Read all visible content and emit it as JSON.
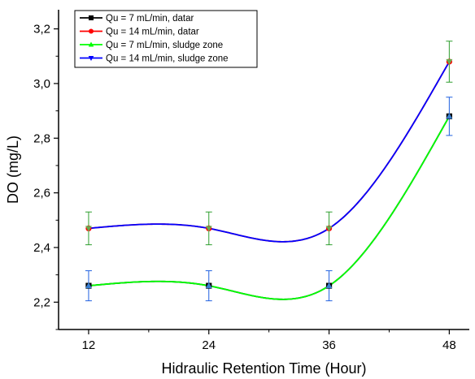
{
  "chart_data": {
    "type": "line",
    "x": [
      12,
      24,
      36,
      48
    ],
    "xlim": [
      9,
      50
    ],
    "ylim": [
      2.1,
      3.27
    ],
    "xticks": [
      12,
      24,
      36,
      48
    ],
    "yticks": [
      2.2,
      2.4,
      2.6,
      2.8,
      3.0,
      3.2
    ],
    "xtick_labels": [
      "12",
      "24",
      "36",
      "48"
    ],
    "ytick_labels": [
      "2,2",
      "2,4",
      "2,6",
      "2,8",
      "3,0",
      "3,2"
    ],
    "xlabel": "Hidraulic Retention Time (Hour)",
    "ylabel": "DO (mg/L)",
    "grid": false,
    "legend_position": "top-left",
    "series": [
      {
        "name": "Qu = 7 mL/min, datar",
        "color": "#000000",
        "marker": "square",
        "values": [
          2.26,
          2.26,
          2.26,
          2.88
        ],
        "errors": [
          0.055,
          0.055,
          0.055,
          0.07
        ]
      },
      {
        "name": "Qu = 14 mL/min, datar",
        "color": "#ff0000",
        "marker": "circle",
        "values": [
          2.47,
          2.47,
          2.47,
          3.08
        ],
        "errors": [
          0.06,
          0.06,
          0.06,
          0.075
        ]
      },
      {
        "name": "Qu = 7 mL/min, sludge zone",
        "color": "#00ff00",
        "marker": "triangle-up",
        "values": [
          2.26,
          2.26,
          2.26,
          2.88
        ],
        "errors": [
          0.055,
          0.055,
          0.055,
          0.07
        ]
      },
      {
        "name": "Qu = 14 mL/min, sludge zone",
        "color": "#0000ff",
        "marker": "triangle-down",
        "values": [
          2.47,
          2.47,
          2.47,
          3.08
        ],
        "errors": [
          0.06,
          0.06,
          0.06,
          0.075
        ]
      }
    ]
  }
}
